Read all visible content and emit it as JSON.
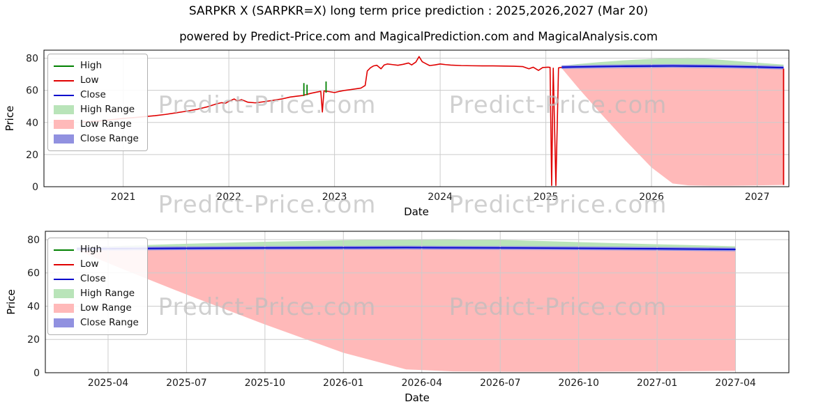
{
  "page": {
    "title": "SARPKR X (SARPKR=X) long term price prediction : 2025,2026,2027 (Mar 20)",
    "subtitle": "powered by Predict-Price.com and MagicalPrediction.com and MagicalAnalysis.com",
    "watermark": "Predict-Price.com"
  },
  "colors": {
    "high": "#008000",
    "low": "#e00000",
    "close": "#0000cc",
    "high_range": "#b9e4b9",
    "low_range": "#ffb9b9",
    "close_range": "#9191e0",
    "grid": "#cccccc",
    "axis": "#000000"
  },
  "legend": {
    "position": "upper left",
    "entries": [
      {
        "label": "High",
        "swatch": "line",
        "color_key": "high"
      },
      {
        "label": "Low",
        "swatch": "line",
        "color_key": "low"
      },
      {
        "label": "Close",
        "swatch": "line",
        "color_key": "close"
      },
      {
        "label": "High Range",
        "swatch": "patch",
        "color_key": "high_range"
      },
      {
        "label": "Low Range",
        "swatch": "patch",
        "color_key": "low_range"
      },
      {
        "label": "Close Range",
        "swatch": "patch",
        "color_key": "close_range"
      }
    ]
  },
  "chart_data": [
    {
      "type": "line",
      "name": "price-chart-full-history",
      "xlabel": "Date",
      "ylabel": "Price",
      "xlim": [
        2020.25,
        2027.3
      ],
      "ylim": [
        0,
        85
      ],
      "grid": true,
      "yticks": [
        0,
        20,
        40,
        60,
        80
      ],
      "xticks": [
        {
          "v": 2021,
          "label": "2021"
        },
        {
          "v": 2022,
          "label": "2022"
        },
        {
          "v": 2023,
          "label": "2023"
        },
        {
          "v": 2024,
          "label": "2024"
        },
        {
          "v": 2025,
          "label": "2025"
        },
        {
          "v": 2026,
          "label": "2026"
        },
        {
          "v": 2027,
          "label": "2027"
        }
      ],
      "series": {
        "historical_low_points": [
          [
            2020.6,
            40.2
          ],
          [
            2020.7,
            40.6
          ],
          [
            2020.8,
            41.0
          ],
          [
            2020.9,
            41.8
          ],
          [
            2021.0,
            42.5
          ],
          [
            2021.1,
            43.0
          ],
          [
            2021.2,
            43.6
          ],
          [
            2021.3,
            44.2
          ],
          [
            2021.4,
            45.0
          ],
          [
            2021.5,
            46.0
          ],
          [
            2021.6,
            47.0
          ],
          [
            2021.7,
            48.2
          ],
          [
            2021.8,
            49.8
          ],
          [
            2021.88,
            51.5
          ],
          [
            2021.93,
            52.3
          ],
          [
            2021.97,
            52.0
          ],
          [
            2022.0,
            53.2
          ],
          [
            2022.05,
            54.6
          ],
          [
            2022.08,
            53.4
          ],
          [
            2022.12,
            54.2
          ],
          [
            2022.18,
            52.6
          ],
          [
            2022.25,
            52.2
          ],
          [
            2022.32,
            52.8
          ],
          [
            2022.4,
            53.6
          ],
          [
            2022.5,
            54.6
          ],
          [
            2022.58,
            55.8
          ],
          [
            2022.65,
            56.4
          ],
          [
            2022.7,
            56.8
          ],
          [
            2022.78,
            58.2
          ],
          [
            2022.84,
            59.0
          ],
          [
            2022.87,
            59.4
          ],
          [
            2022.885,
            46.5
          ],
          [
            2022.9,
            59.6
          ],
          [
            2022.95,
            59.2
          ],
          [
            2023.0,
            58.6
          ],
          [
            2023.05,
            59.4
          ],
          [
            2023.1,
            60.0
          ],
          [
            2023.15,
            60.4
          ],
          [
            2023.2,
            60.9
          ],
          [
            2023.25,
            61.4
          ],
          [
            2023.29,
            63.0
          ],
          [
            2023.31,
            72.0
          ],
          [
            2023.34,
            74.0
          ],
          [
            2023.37,
            75.2
          ],
          [
            2023.4,
            75.6
          ],
          [
            2023.44,
            73.4
          ],
          [
            2023.47,
            75.8
          ],
          [
            2023.5,
            76.4
          ],
          [
            2023.55,
            76.0
          ],
          [
            2023.6,
            75.6
          ],
          [
            2023.65,
            76.2
          ],
          [
            2023.7,
            77.0
          ],
          [
            2023.73,
            75.8
          ],
          [
            2023.77,
            77.6
          ],
          [
            2023.8,
            81.0
          ],
          [
            2023.83,
            77.8
          ],
          [
            2023.87,
            76.4
          ],
          [
            2023.9,
            75.4
          ],
          [
            2023.95,
            75.8
          ],
          [
            2024.0,
            76.4
          ],
          [
            2024.05,
            76.0
          ],
          [
            2024.1,
            75.7
          ],
          [
            2024.2,
            75.4
          ],
          [
            2024.3,
            75.3
          ],
          [
            2024.4,
            75.2
          ],
          [
            2024.5,
            75.2
          ],
          [
            2024.6,
            75.1
          ],
          [
            2024.7,
            75.0
          ],
          [
            2024.78,
            74.8
          ],
          [
            2024.84,
            73.4
          ],
          [
            2024.88,
            74.4
          ],
          [
            2024.93,
            72.4
          ],
          [
            2024.97,
            74.2
          ],
          [
            2025.02,
            74.4
          ],
          [
            2025.04,
            74.3
          ],
          [
            2025.055,
            0.8
          ],
          [
            2025.07,
            73.8
          ],
          [
            2025.095,
            0.8
          ],
          [
            2025.12,
            74.0
          ],
          [
            2025.15,
            74.3
          ]
        ],
        "high_segments": [
          [
            2022.71,
            56.5,
            64.5
          ],
          [
            2022.74,
            57.0,
            63.5
          ],
          [
            2022.92,
            58.5,
            65.5
          ]
        ],
        "forecast": {
          "x": [
            2025.15,
            2025.3,
            2025.5,
            2025.75,
            2026.0,
            2026.2,
            2026.35,
            2026.55,
            2026.75,
            2027.0,
            2027.25
          ],
          "high": [
            75.2,
            76.3,
            77.5,
            78.7,
            79.6,
            80.2,
            80.3,
            79.6,
            78.5,
            77.2,
            76.0
          ],
          "close": [
            74.4,
            74.6,
            74.8,
            75.0,
            75.1,
            75.2,
            75.1,
            75.0,
            74.8,
            74.5,
            74.1
          ],
          "low": [
            73.8,
            62.0,
            47.0,
            29.0,
            12.0,
            2.0,
            0.8,
            0.6,
            0.6,
            0.8,
            1.1
          ],
          "close_band": 1.1
        },
        "end_spike": {
          "x": 2027.25,
          "y1": 1.1,
          "y2": 73.5
        }
      }
    },
    {
      "type": "line",
      "name": "price-chart-forecast-detail",
      "xlabel": "Date",
      "ylabel": "Price",
      "xlim": [
        2025.05,
        2027.42
      ],
      "ylim": [
        0,
        85
      ],
      "grid": true,
      "yticks": [
        0,
        20,
        40,
        60,
        80
      ],
      "xticks": [
        {
          "v": 2025.25,
          "label": "2025-04"
        },
        {
          "v": 2025.5,
          "label": "2025-07"
        },
        {
          "v": 2025.75,
          "label": "2025-10"
        },
        {
          "v": 2026.0,
          "label": "2026-01"
        },
        {
          "v": 2026.25,
          "label": "2026-04"
        },
        {
          "v": 2026.5,
          "label": "2026-07"
        },
        {
          "v": 2026.75,
          "label": "2026-10"
        },
        {
          "v": 2027.0,
          "label": "2027-01"
        },
        {
          "v": 2027.25,
          "label": "2027-04"
        }
      ],
      "series": {
        "forecast": {
          "x": [
            2025.15,
            2025.3,
            2025.5,
            2025.75,
            2026.0,
            2026.2,
            2026.35,
            2026.55,
            2026.75,
            2027.0,
            2027.25
          ],
          "high": [
            75.2,
            76.3,
            77.5,
            78.7,
            79.6,
            80.2,
            80.3,
            79.6,
            78.5,
            77.2,
            76.0
          ],
          "close": [
            74.4,
            74.6,
            74.8,
            75.0,
            75.1,
            75.2,
            75.1,
            75.0,
            74.8,
            74.5,
            74.1
          ],
          "low": [
            73.8,
            62.0,
            47.0,
            29.0,
            12.0,
            2.0,
            0.8,
            0.6,
            0.6,
            0.8,
            1.1
          ],
          "close_band": 1.1
        }
      }
    }
  ]
}
